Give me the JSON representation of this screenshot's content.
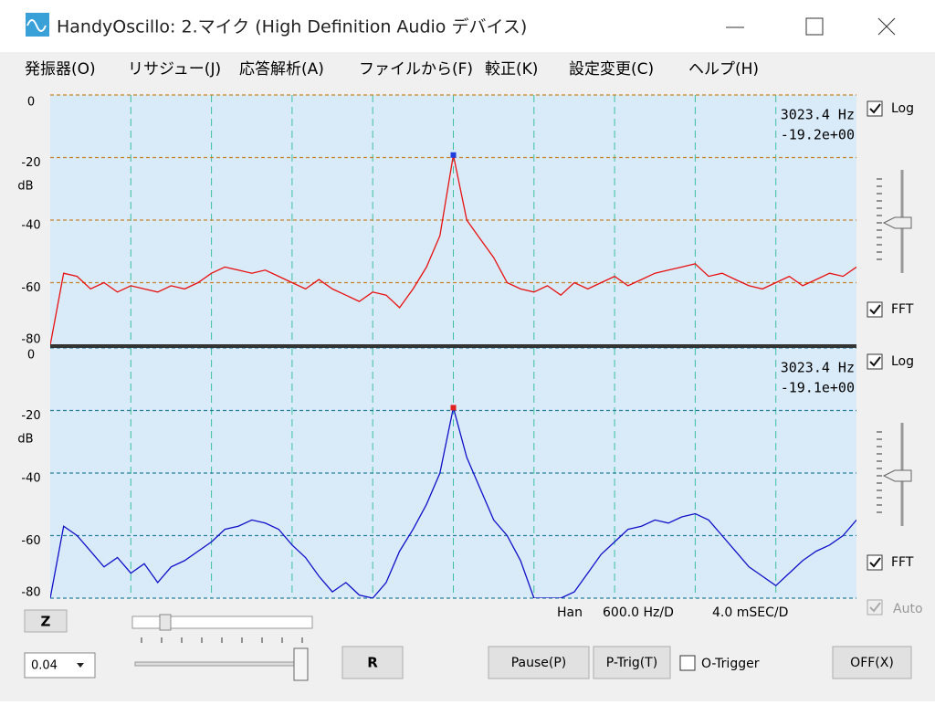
{
  "window": {
    "title": "HandyOscillo:  2.マイク (High Definition Audio デバイス)",
    "menu": [
      "発振器(O)",
      "リサジュー(J)",
      "応答解析(A)",
      "ファイルから(F)",
      "較正(K)",
      "設定変更(C)",
      "ヘルプ(H)"
    ]
  },
  "chart_data": [
    {
      "type": "line",
      "y_label": "dB",
      "readout": [
        "3023.4 Hz",
        "-19.2e+00"
      ],
      "xlim": [
        0,
        6000
      ],
      "ylim": [
        -80,
        0
      ],
      "yticks": [
        0,
        -20,
        -40,
        -60,
        -80
      ],
      "grid_color": "#c8822a",
      "peak_color": "#2040e0",
      "x": [
        0,
        100,
        200,
        300,
        400,
        500,
        600,
        700,
        800,
        900,
        1000,
        1100,
        1200,
        1300,
        1400,
        1500,
        1600,
        1700,
        1800,
        1900,
        2000,
        2100,
        2200,
        2300,
        2400,
        2500,
        2600,
        2700,
        2800,
        2900,
        3000,
        3100,
        3200,
        3300,
        3400,
        3500,
        3600,
        3700,
        3800,
        3900,
        4000,
        4100,
        4200,
        4300,
        4400,
        4500,
        4600,
        4700,
        4800,
        4900,
        5000,
        5100,
        5200,
        5300,
        5400,
        5500,
        5600,
        5700,
        5800,
        5900,
        6000
      ],
      "series": [
        {
          "color": "#e81010",
          "values": [
            -80,
            -57,
            -58,
            -62,
            -60,
            -63,
            -61,
            -62,
            -63,
            -61,
            -62,
            -60,
            -57,
            -55,
            -56,
            -57,
            -56,
            -58,
            -60,
            -62,
            -59,
            -62,
            -64,
            -66,
            -63,
            -64,
            -68,
            -62,
            -55,
            -45,
            -19.2,
            -40,
            -46,
            -52,
            -60,
            -62,
            -63,
            -61,
            -64,
            -60,
            -62,
            -60,
            -58,
            -61,
            -59,
            -57,
            -56,
            -55,
            -54,
            -58,
            -57,
            -59,
            -61,
            -62,
            -60,
            -58,
            -61,
            -59,
            -57,
            -58,
            -55
          ]
        }
      ],
      "right": {
        "log": "Log",
        "fft": "FFT"
      }
    },
    {
      "type": "line",
      "y_label": "dB",
      "readout": [
        "3023.4 Hz",
        "-19.1e+00"
      ],
      "xlim": [
        0,
        6000
      ],
      "ylim": [
        -80,
        0
      ],
      "yticks": [
        0,
        -20,
        -40,
        -60,
        -80
      ],
      "grid_color": "#2a7fa0",
      "peak_color": "#e02020",
      "x": [
        0,
        100,
        200,
        300,
        400,
        500,
        600,
        700,
        800,
        900,
        1000,
        1100,
        1200,
        1300,
        1400,
        1500,
        1600,
        1700,
        1800,
        1900,
        2000,
        2100,
        2200,
        2300,
        2400,
        2500,
        2600,
        2700,
        2800,
        2900,
        3000,
        3100,
        3200,
        3300,
        3400,
        3500,
        3600,
        3700,
        3800,
        3900,
        4000,
        4100,
        4200,
        4300,
        4400,
        4500,
        4600,
        4700,
        4800,
        4900,
        5000,
        5100,
        5200,
        5300,
        5400,
        5500,
        5600,
        5700,
        5800,
        5900,
        6000
      ],
      "series": [
        {
          "color": "#1010c8",
          "values": [
            -80,
            -57,
            -60,
            -65,
            -70,
            -67,
            -72,
            -69,
            -75,
            -70,
            -68,
            -65,
            -62,
            -58,
            -57,
            -55,
            -56,
            -58,
            -63,
            -67,
            -73,
            -78,
            -75,
            -79,
            -80,
            -75,
            -65,
            -58,
            -50,
            -40,
            -19.1,
            -35,
            -45,
            -55,
            -60,
            -68,
            -80,
            -80,
            -80,
            -78,
            -72,
            -66,
            -62,
            -58,
            -57,
            -55,
            -56,
            -54,
            -53,
            -55,
            -60,
            -65,
            -70,
            -73,
            -76,
            -72,
            -68,
            -65,
            -63,
            -60,
            -55
          ]
        }
      ],
      "right": {
        "log": "Log",
        "fft": "FFT"
      }
    }
  ],
  "auto": "Auto",
  "status": {
    "window_fn": "Han",
    "freq_div": "600.0 Hz/D",
    "time_div": "4.0 mSEC/D"
  },
  "controls": {
    "z": "Z",
    "r": "R",
    "select": "0.04",
    "pause": "Pause(P)",
    "ptrig": "P-Trig(T)",
    "otrigger": "O-Trigger",
    "off": "OFF(X)"
  }
}
